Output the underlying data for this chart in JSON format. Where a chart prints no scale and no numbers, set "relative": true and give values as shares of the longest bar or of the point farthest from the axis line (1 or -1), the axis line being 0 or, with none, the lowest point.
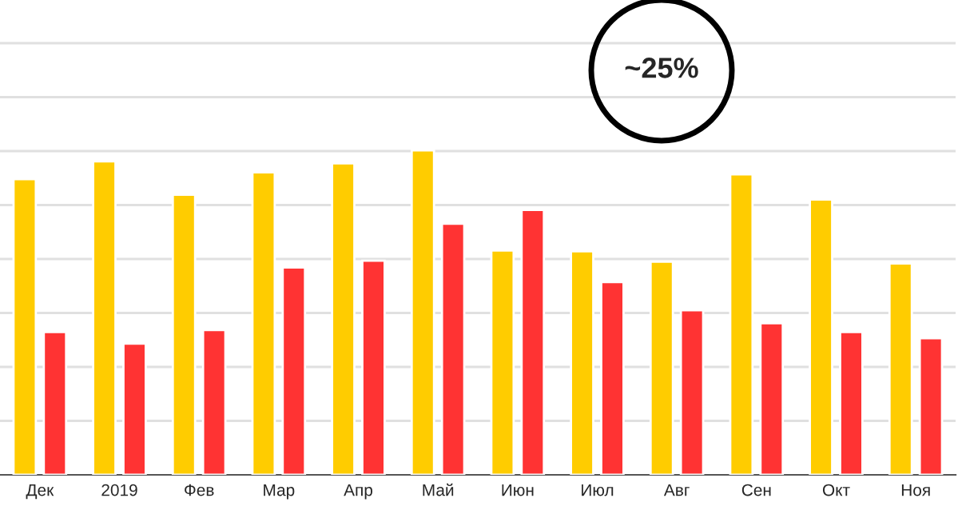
{
  "chart_data": {
    "type": "bar",
    "relative": true,
    "grid": "y",
    "categories": [
      "Дек",
      "2019",
      "Фев",
      "Мар",
      "Апр",
      "Май",
      "Июн",
      "Июл",
      "Авг",
      "Сен",
      "Окт",
      "Ноя"
    ],
    "series": [
      {
        "color": "#ffcc00",
        "values": [
          0.911,
          0.966,
          0.863,
          0.932,
          0.96,
          1,
          0.691,
          0.689,
          0.657,
          0.926,
          0.848,
          0.651
        ]
      },
      {
        "color": "#ff3333",
        "values": [
          0.44,
          0.404,
          0.446,
          0.639,
          0.66,
          0.774,
          0.816,
          0.594,
          0.507,
          0.467,
          0.44,
          0.421
        ]
      }
    ],
    "annotations": [
      "~25%"
    ]
  }
}
